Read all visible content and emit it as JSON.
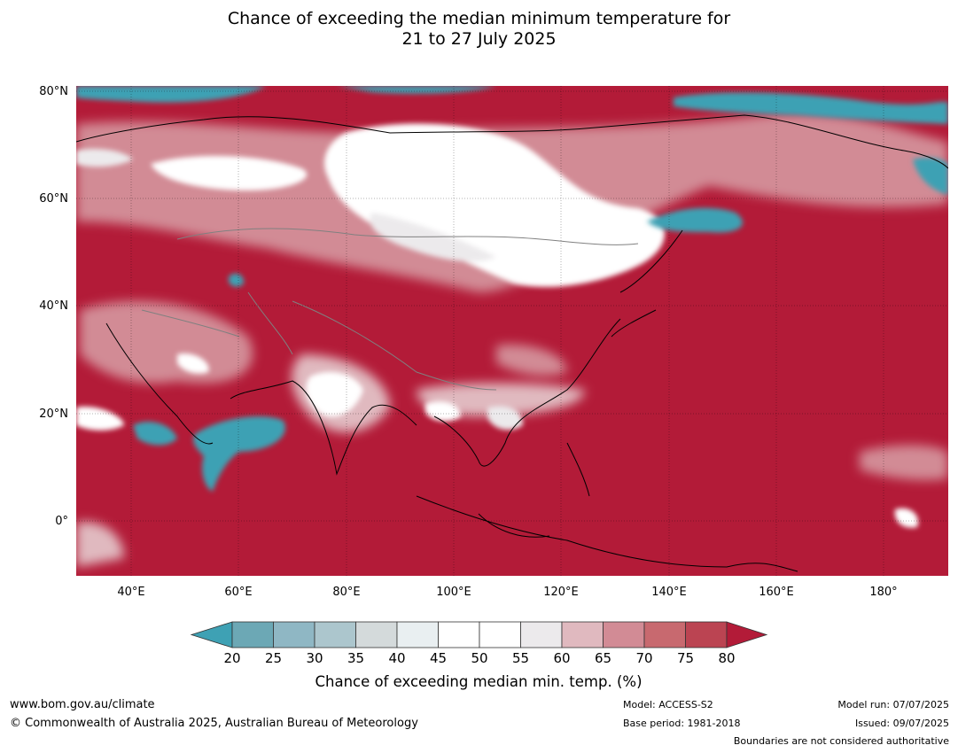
{
  "title": {
    "line1": "Chance of exceeding the median minimum temperature for",
    "line2": "21 to 27 July 2025"
  },
  "map": {
    "lat_labels": [
      "80°N",
      "60°N",
      "40°N",
      "20°N",
      "0°"
    ],
    "lon_labels": [
      "40°E",
      "60°E",
      "80°E",
      "100°E",
      "120°E",
      "140°E",
      "160°E",
      "180°"
    ],
    "lat_values": [
      80,
      60,
      40,
      20,
      0
    ],
    "lon_values": [
      40,
      60,
      80,
      100,
      120,
      140,
      160,
      180
    ],
    "extent": {
      "lon_min": 30,
      "lon_max": 192,
      "lat_min": -10,
      "lat_max": 80
    },
    "dominant_color": "#b31b38"
  },
  "colorbar": {
    "title": "Chance of exceeding median min. temp. (%)",
    "tick_labels": [
      "20",
      "25",
      "30",
      "35",
      "40",
      "45",
      "50",
      "55",
      "60",
      "65",
      "70",
      "75",
      "80"
    ],
    "colors": [
      "#3ea1b4",
      "#6ca8b5",
      "#8fb7c4",
      "#acc6cd",
      "#d4dadb",
      "#e9eff1",
      "#ffffff",
      "#ffffff",
      "#eceaec",
      "#e0b9bf",
      "#d28b95",
      "#c8696f",
      "#bb4452",
      "#b31b38"
    ]
  },
  "footer": {
    "url": "www.bom.gov.au/climate",
    "copyright": "© Commonwealth of Australia 2025, Australian Bureau of Meteorology",
    "model": "Model: ACCESS-S2",
    "base_period": "Base period: 1981-2018",
    "model_run": "Model run: 07/07/2025",
    "issued": "Issued: 09/07/2025",
    "disclaimer": "Boundaries are not considered authoritative"
  }
}
